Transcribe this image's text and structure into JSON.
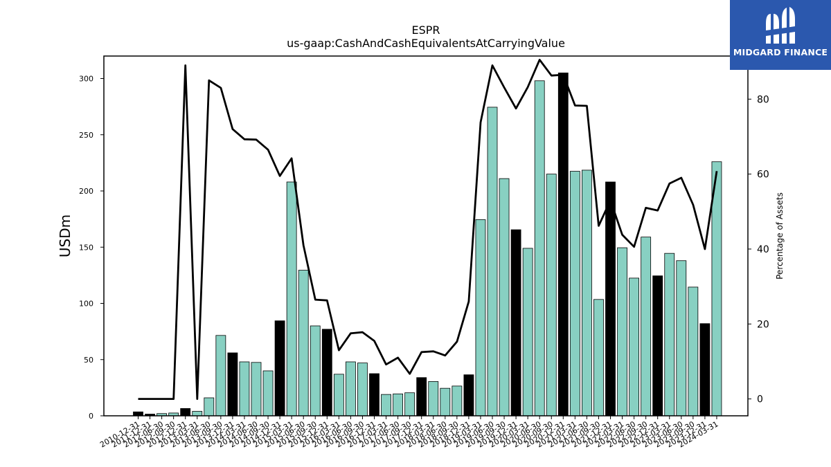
{
  "brand": {
    "name": "MIDGARD FINANCE",
    "logo_color": "#2b58ae",
    "logo_icon": "midgard-m-icon"
  },
  "chart_data": {
    "type": "bar",
    "title": "ESPR",
    "subtitle": "us-gaap:CashAndCashEquivalentsAtCarryingValue",
    "ylabel": "USDm",
    "y2label": "Percentage of Assets",
    "ylim": [
      0,
      320
    ],
    "y2lim": [
      -4.5,
      91.5
    ],
    "yticks": [
      0,
      50,
      100,
      150,
      200,
      250,
      300
    ],
    "y2ticks": [
      0,
      20,
      40,
      60,
      80
    ],
    "grid": false,
    "colors": {
      "annual": "#000000",
      "quarterly": "#88d0c2",
      "line": "#000000"
    },
    "categories": [
      "2010-12-31",
      "2011-12-31",
      "2012-06-30",
      "2012-09-30",
      "2012-12-31",
      "2013-03-31",
      "2013-06-30",
      "2013-09-30",
      "2013-12-31",
      "2014-03-31",
      "2014-06-30",
      "2014-09-30",
      "2014-12-31",
      "2015-03-31",
      "2015-06-30",
      "2015-09-30",
      "2015-12-31",
      "2016-03-31",
      "2016-06-30",
      "2016-09-30",
      "2016-12-31",
      "2017-03-31",
      "2017-06-30",
      "2017-09-30",
      "2017-12-31",
      "2018-03-31",
      "2018-06-30",
      "2018-09-30",
      "2018-12-31",
      "2019-03-31",
      "2019-06-30",
      "2019-09-30",
      "2019-12-31",
      "2020-03-31",
      "2020-06-30",
      "2020-09-30",
      "2020-12-31",
      "2021-03-31",
      "2021-06-30",
      "2021-09-30",
      "2021-12-31",
      "2022-03-31",
      "2022-06-30",
      "2022-09-30",
      "2022-12-31",
      "2023-03-31",
      "2023-06-30",
      "2023-09-30",
      "2023-12-31",
      "2024-03-31"
    ],
    "series": [
      {
        "kind": "bar",
        "values": [
          3.5,
          1.5,
          2,
          2.5,
          6.5,
          4,
          16,
          71.5,
          56,
          48,
          47.5,
          40,
          84.5,
          208,
          129.5,
          80,
          77,
          37,
          48,
          47,
          37.5,
          19,
          19.5,
          20.5,
          34,
          30.5,
          24.5,
          26.5,
          36.5,
          174.5,
          274.5,
          211,
          165.5,
          149,
          298,
          215,
          305,
          217.5,
          218.5,
          103.5,
          208,
          149.5,
          122.5,
          159,
          124.5,
          144.5,
          138,
          114.5,
          82,
          226
        ],
        "annual": [
          true,
          true,
          false,
          false,
          true,
          false,
          false,
          false,
          true,
          false,
          false,
          false,
          true,
          false,
          false,
          false,
          true,
          false,
          false,
          false,
          true,
          false,
          false,
          false,
          true,
          false,
          false,
          false,
          true,
          false,
          false,
          false,
          true,
          false,
          false,
          false,
          true,
          false,
          false,
          false,
          true,
          false,
          false,
          false,
          true,
          false,
          false,
          false,
          true,
          false
        ]
      },
      {
        "kind": "line",
        "axis": "right",
        "values": [
          0,
          0,
          0,
          0,
          89,
          0,
          85,
          83,
          72,
          69.3,
          69.2,
          66.5,
          59.5,
          64.2,
          41,
          26.5,
          26.3,
          13,
          17.5,
          17.8,
          15.5,
          9.2,
          11,
          6.7,
          12.5,
          12.7,
          11.6,
          15.3,
          26,
          73.8,
          89,
          83.1,
          77.5,
          83.2,
          90.5,
          86.3,
          86.5,
          78.3,
          78.2,
          46.2,
          53,
          43.8,
          40.6,
          51,
          50.3,
          57.5,
          59,
          51.8,
          40,
          60.8
        ]
      }
    ]
  }
}
